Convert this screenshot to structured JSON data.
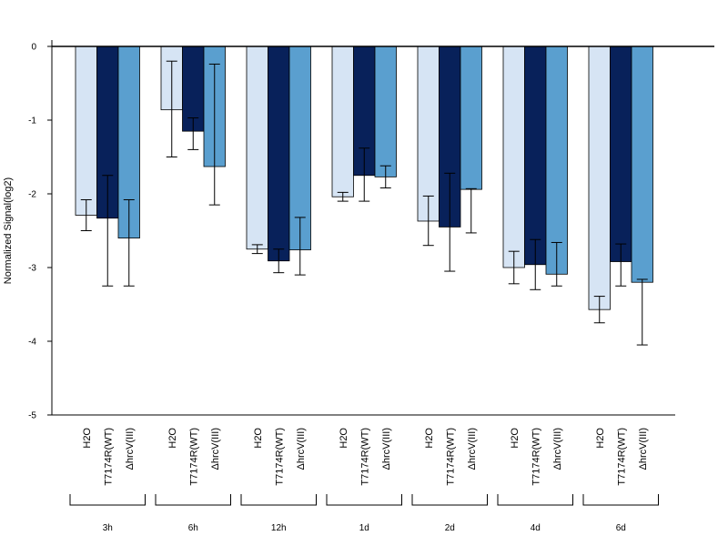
{
  "chart_data": {
    "type": "bar",
    "ylabel": "Normalized Signal(log2)",
    "ylim": [
      -5,
      0.1
    ],
    "yticks": [
      0,
      -1,
      -2,
      -3,
      -4,
      -5
    ],
    "ytick_labels": [
      "0",
      "-1",
      "-2",
      "-3",
      "-4",
      "-5"
    ],
    "categories": [
      "3h",
      "6h",
      "12h",
      "1d",
      "2d",
      "4d",
      "6d"
    ],
    "series_labels": [
      "H2O",
      "T7174R(WT)",
      "ΔhrcV(III)"
    ],
    "series_colors": [
      "#d6e4f4",
      "#08215a",
      "#5a9fcf"
    ],
    "series": [
      {
        "values": [
          -2.29,
          -0.86,
          -2.75,
          -2.04,
          -2.37,
          -3.0,
          -3.57
        ],
        "err_low": [
          -2.5,
          -1.5,
          -2.81,
          -2.1,
          -2.7,
          -3.22,
          -3.75
        ],
        "err_high": [
          -2.08,
          -0.2,
          -2.69,
          -1.98,
          -2.03,
          -2.78,
          -3.39
        ]
      },
      {
        "values": [
          -2.33,
          -1.15,
          -2.91,
          -1.75,
          -2.45,
          -2.96,
          -2.92
        ],
        "err_low": [
          -3.25,
          -1.4,
          -3.07,
          -2.1,
          -3.05,
          -3.3,
          -3.25
        ],
        "err_high": [
          -1.75,
          -0.97,
          -2.75,
          -1.38,
          -1.72,
          -2.62,
          -2.68
        ]
      },
      {
        "values": [
          -2.6,
          -1.63,
          -2.76,
          -1.77,
          -1.94,
          -3.09,
          -3.2
        ],
        "err_low": [
          -3.25,
          -2.15,
          -3.1,
          -1.92,
          -2.53,
          -3.25,
          -4.05
        ],
        "err_high": [
          -2.08,
          -0.24,
          -2.32,
          -1.62,
          -1.93,
          -2.66,
          -3.16
        ]
      }
    ],
    "grid": false,
    "legend": "none"
  }
}
